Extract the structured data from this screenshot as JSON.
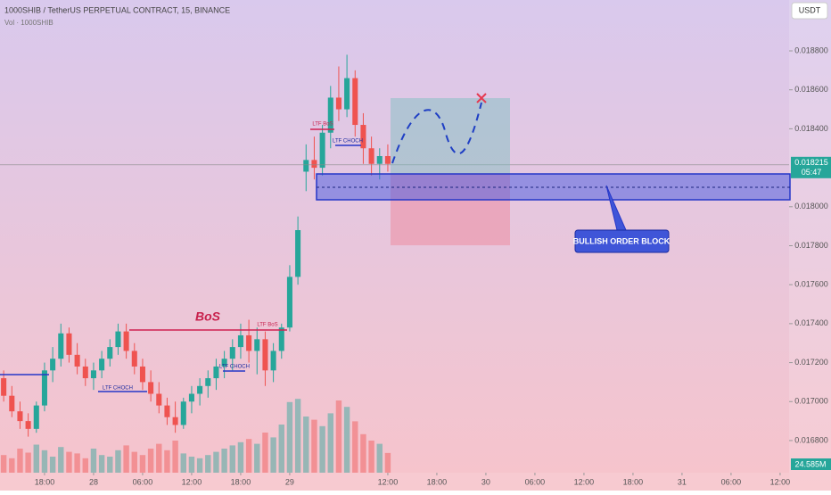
{
  "chart_data": {
    "type": "candlestick",
    "title": "1000SHIB / TetherUS PERPETUAL CONTRACT, 15, BINANCE",
    "subtitle": "Vol · 1000SHIB",
    "currency": "USDT",
    "up_color": "#26a69a",
    "down_color": "#ef5350",
    "x": [
      -11,
      -10,
      -9,
      -8,
      -7,
      -6,
      -5,
      -4,
      -3,
      -2,
      -1,
      0,
      1,
      2,
      3,
      4,
      5,
      6,
      7,
      8,
      9,
      10,
      11,
      12,
      13,
      14,
      15,
      16,
      17,
      18,
      19,
      20,
      21,
      22,
      23,
      24,
      25,
      26,
      27,
      28,
      29,
      30,
      31,
      32,
      33,
      34,
      35,
      36
    ],
    "open": [
      0.01712,
      0.01703,
      0.01695,
      0.0169,
      0.01686,
      0.01698,
      0.01716,
      0.01722,
      0.01735,
      0.01724,
      0.01718,
      0.01712,
      0.01716,
      0.01722,
      0.01728,
      0.01736,
      0.01726,
      0.01718,
      0.0171,
      0.01704,
      0.01698,
      0.01692,
      0.01688,
      0.017,
      0.01704,
      0.01708,
      0.01712,
      0.01718,
      0.01722,
      0.01728,
      0.01734,
      0.01726,
      0.01732,
      0.01716,
      0.01726,
      0.01738,
      0.01764,
      0.01818,
      0.01824,
      0.0182,
      0.01838,
      0.01856,
      0.0185,
      0.01866,
      0.01842,
      0.0183,
      0.01822,
      0.01826
    ],
    "high": [
      0.01716,
      0.01708,
      0.017,
      0.01694,
      0.017,
      0.0172,
      0.01728,
      0.0174,
      0.01738,
      0.0173,
      0.01722,
      0.0172,
      0.01726,
      0.01732,
      0.0174,
      0.0174,
      0.0173,
      0.01722,
      0.01716,
      0.0171,
      0.01702,
      0.017,
      0.01702,
      0.01708,
      0.01712,
      0.01716,
      0.01722,
      0.01726,
      0.01732,
      0.0174,
      0.01742,
      0.01738,
      0.01736,
      0.0173,
      0.0174,
      0.0177,
      0.01795,
      0.01832,
      0.01836,
      0.01842,
      0.01862,
      0.01872,
      0.01878,
      0.0187,
      0.01848,
      0.01836,
      0.0183,
      0.01832
    ],
    "low": [
      0.017,
      0.01692,
      0.01686,
      0.01682,
      0.01684,
      0.01695,
      0.0171,
      0.01718,
      0.0172,
      0.01714,
      0.01708,
      0.01706,
      0.01712,
      0.01718,
      0.01724,
      0.01722,
      0.01714,
      0.01706,
      0.017,
      0.01694,
      0.01688,
      0.01684,
      0.01686,
      0.01694,
      0.01698,
      0.01702,
      0.01706,
      0.01712,
      0.01716,
      0.01722,
      0.0172,
      0.01714,
      0.01708,
      0.0171,
      0.01722,
      0.01736,
      0.0176,
      0.01808,
      0.01814,
      0.01816,
      0.0183,
      0.01844,
      0.01846,
      0.01836,
      0.01822,
      0.01816,
      0.01814,
      0.01818
    ],
    "close": [
      0.01703,
      0.01695,
      0.0169,
      0.01686,
      0.01698,
      0.01716,
      0.01722,
      0.01735,
      0.01724,
      0.01718,
      0.01712,
      0.01716,
      0.01722,
      0.01728,
      0.01736,
      0.01726,
      0.01718,
      0.0171,
      0.01704,
      0.01698,
      0.01692,
      0.01688,
      0.017,
      0.01704,
      0.01708,
      0.01712,
      0.01718,
      0.01722,
      0.01728,
      0.01734,
      0.01726,
      0.01732,
      0.01716,
      0.01726,
      0.01738,
      0.01764,
      0.01788,
      0.01824,
      0.0182,
      0.01838,
      0.01856,
      0.0185,
      0.01866,
      0.01842,
      0.0183,
      0.01822,
      0.01826,
      0.01822
    ],
    "volume": [
      22,
      18,
      30,
      25,
      35,
      28,
      20,
      32,
      26,
      24,
      18,
      30,
      22,
      20,
      28,
      34,
      26,
      22,
      30,
      36,
      28,
      40,
      24,
      20,
      18,
      22,
      26,
      30,
      34,
      38,
      42,
      36,
      50,
      44,
      60,
      88,
      92,
      70,
      66,
      58,
      74,
      90,
      82,
      64,
      48,
      40,
      36,
      24.585
    ],
    "last_volume_label": "24.585M",
    "volume_max": 100,
    "last_price": 0.018215,
    "countdown": "05:47",
    "annotations": {
      "bos": "BoS",
      "ltf_bos": "LTF BoS",
      "ltf_choch": "LTF CHOCH",
      "order_block": "BULLISH ORDER BLOCK"
    },
    "xlim": [
      -11.45,
      85.1
    ],
    "ylim": [
      0.016635,
      0.019061
    ],
    "xticks": [
      {
        "value": -6,
        "label": "18:00"
      },
      {
        "value": 0,
        "label": "28"
      },
      {
        "value": 6,
        "label": "06:00"
      },
      {
        "value": 12,
        "label": "12:00"
      },
      {
        "value": 18,
        "label": "18:00"
      },
      {
        "value": 24,
        "label": "29"
      },
      {
        "value": 36,
        "label": "12:00"
      },
      {
        "value": 42,
        "label": "18:00"
      },
      {
        "value": 48,
        "label": "30"
      },
      {
        "value": 54,
        "label": "06:00"
      },
      {
        "value": 60,
        "label": "12:00"
      },
      {
        "value": 66,
        "label": "18:00"
      },
      {
        "value": 72,
        "label": "31"
      },
      {
        "value": 78,
        "label": "06:00"
      },
      {
        "value": 84,
        "label": "12:00"
      }
    ],
    "yticks": [
      {
        "value": 0.0168,
        "label": "0.016800"
      },
      {
        "value": 0.017,
        "label": "0.017000"
      },
      {
        "value": 0.0172,
        "label": "0.017200"
      },
      {
        "value": 0.0174,
        "label": "0.017400"
      },
      {
        "value": 0.0176,
        "label": "0.017600"
      },
      {
        "value": 0.0178,
        "label": "0.017800"
      },
      {
        "value": 0.018,
        "label": "0.018000"
      },
      {
        "value": 0.0184,
        "label": "0.018400"
      },
      {
        "value": 0.0186,
        "label": "0.018600"
      },
      {
        "value": 0.0188,
        "label": "0.018800"
      }
    ]
  }
}
